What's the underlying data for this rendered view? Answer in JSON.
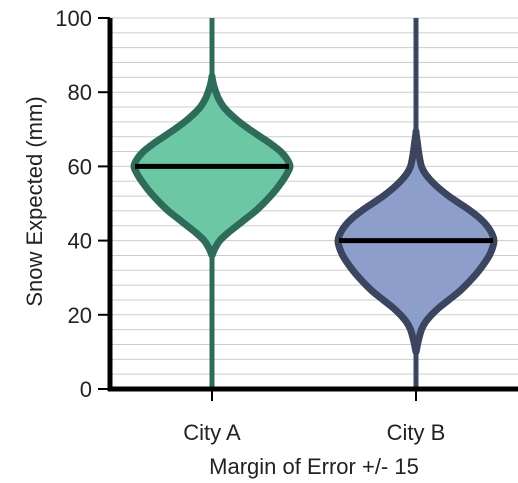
{
  "chart_data": {
    "type": "violin",
    "ylabel": "Snow Expected (mm)",
    "xlabel": "Margin of Error +/- 15",
    "ylim": [
      0,
      100
    ],
    "yticks": [
      0,
      20,
      40,
      60,
      80,
      100
    ],
    "minor_grid_step": 4,
    "grid": true,
    "series": [
      {
        "category": "City A",
        "median": 60,
        "min": 0,
        "max": 100,
        "fill": "#6cc8a4",
        "stroke": "#2f6b5a",
        "profile": [
          [
            36,
            0
          ],
          [
            38,
            0.04
          ],
          [
            40,
            0.1
          ],
          [
            42,
            0.2
          ],
          [
            44,
            0.32
          ],
          [
            46,
            0.44
          ],
          [
            48,
            0.56
          ],
          [
            50,
            0.66
          ],
          [
            52,
            0.75
          ],
          [
            54,
            0.83
          ],
          [
            56,
            0.9
          ],
          [
            58,
            0.96
          ],
          [
            60,
            1.0
          ],
          [
            62,
            0.96
          ],
          [
            64,
            0.88
          ],
          [
            66,
            0.76
          ],
          [
            68,
            0.62
          ],
          [
            70,
            0.48
          ],
          [
            72,
            0.35
          ],
          [
            74,
            0.24
          ],
          [
            76,
            0.15
          ],
          [
            78,
            0.09
          ],
          [
            80,
            0.05
          ],
          [
            82,
            0.02
          ],
          [
            84,
            0
          ]
        ]
      },
      {
        "category": "City B",
        "median": 40,
        "min": 0,
        "max": 100,
        "fill": "#8e9ecb",
        "stroke": "#3b4560",
        "profile": [
          [
            10,
            0
          ],
          [
            13,
            0.03
          ],
          [
            16,
            0.07
          ],
          [
            18,
            0.12
          ],
          [
            20,
            0.2
          ],
          [
            22,
            0.3
          ],
          [
            24,
            0.42
          ],
          [
            26,
            0.54
          ],
          [
            28,
            0.64
          ],
          [
            30,
            0.73
          ],
          [
            32,
            0.81
          ],
          [
            34,
            0.88
          ],
          [
            36,
            0.94
          ],
          [
            38,
            0.98
          ],
          [
            40,
            1.0
          ],
          [
            42,
            0.97
          ],
          [
            44,
            0.91
          ],
          [
            46,
            0.82
          ],
          [
            48,
            0.7
          ],
          [
            50,
            0.56
          ],
          [
            52,
            0.42
          ],
          [
            54,
            0.3
          ],
          [
            56,
            0.2
          ],
          [
            58,
            0.12
          ],
          [
            60,
            0.07
          ],
          [
            63,
            0.04
          ],
          [
            66,
            0.02
          ],
          [
            69,
            0
          ]
        ]
      }
    ]
  }
}
